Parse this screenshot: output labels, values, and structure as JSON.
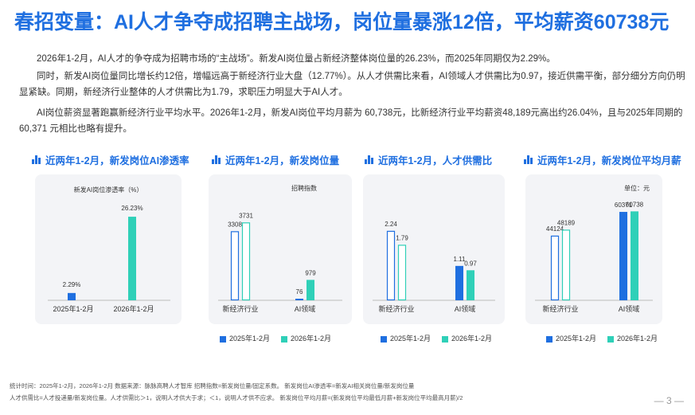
{
  "title": "春招变量：AI人才争夺成招聘主战场，岗位量暴涨12倍，平均薪资60738元",
  "paragraphs": [
    "2026年1-2月，AI人才的争夺成为招聘市场的“主战场”。新发AI岗位量占新经济整体岗位量的26.23%，而2025年同期仅为2.29%。",
    "同时，新发AI岗位量同比增长约12倍，增幅远高于新经济行业大盘（12.77%）。从人才供需比来看，AI领域人才供需比为0.97，接近供需平衡，部分细分方向仍明显紧缺。同期，新经济行业整体的人才供需比为1.79，求职压力明显大于AI人才。",
    "AI岗位薪资显著跑赢新经济行业平均水平。2026年1-2月，新发AI岗位平均月薪为 60,738元，比新经济行业平均薪资48,189元高出约26.04%，且与2025年同期的60,371 元相比也略有提升。"
  ],
  "colors": {
    "blue": "#1f6fe0",
    "teal": "#2fd0b8"
  },
  "legend": [
    "2025年1-2月",
    "2026年1-2月"
  ],
  "chart_data": [
    {
      "type": "bar",
      "title": "近两年1-2月，新发岗位AI渗透率",
      "note": "新发AI岗位渗透率（%）",
      "categories": [
        "2025年1-2月",
        "2026年1-2月"
      ],
      "values": [
        2.29,
        26.23
      ],
      "value_labels": [
        "2.29%",
        "26.23%"
      ],
      "ylim": [
        0,
        30
      ]
    },
    {
      "type": "bar",
      "title": "近两年1-2月，新发岗位量",
      "note": "招聘指数",
      "categories": [
        "新经济行业",
        "AI领域"
      ],
      "series": [
        {
          "name": "2025年1-2月",
          "values": [
            3308,
            76
          ]
        },
        {
          "name": "2026年1-2月",
          "values": [
            3731,
            979
          ]
        }
      ],
      "ylim": [
        0,
        4200
      ]
    },
    {
      "type": "bar",
      "title": "近两年1-2月，人才供需比",
      "categories": [
        "新经济行业",
        "AI领域"
      ],
      "series": [
        {
          "name": "2025年1-2月",
          "values": [
            2.24,
            1.11
          ]
        },
        {
          "name": "2026年1-2月",
          "values": [
            1.79,
            0.97
          ]
        }
      ],
      "ylim": [
        0,
        2.7
      ]
    },
    {
      "type": "bar",
      "title": "近两年1-2月，新发岗位平均月薪",
      "note": "单位：元",
      "categories": [
        "新经济行业",
        "AI领域"
      ],
      "series": [
        {
          "name": "2025年1-2月",
          "values": [
            44124,
            60371
          ]
        },
        {
          "name": "2026年1-2月",
          "values": [
            48189,
            60738
          ]
        }
      ],
      "ylim": [
        0,
        68000
      ]
    }
  ],
  "footnotes": [
    "统计时间：2025年1-2月，2026年1-2月      数据来源：脉脉高聘人才智库    招聘指数=新发岗位量/固定系数。     新发岗位AI渗透率=新发AI相关岗位量/新发岗位量",
    "人才供需比=人才投递量/新发岗位量。人才供需比＞1，说明人才供大于求；＜1，说明人才供不应求。     新发岗位平均月薪=(新发岗位平均最低月薪+新发岗位平均最高月薪)/2"
  ],
  "page_number": "— 3 —"
}
